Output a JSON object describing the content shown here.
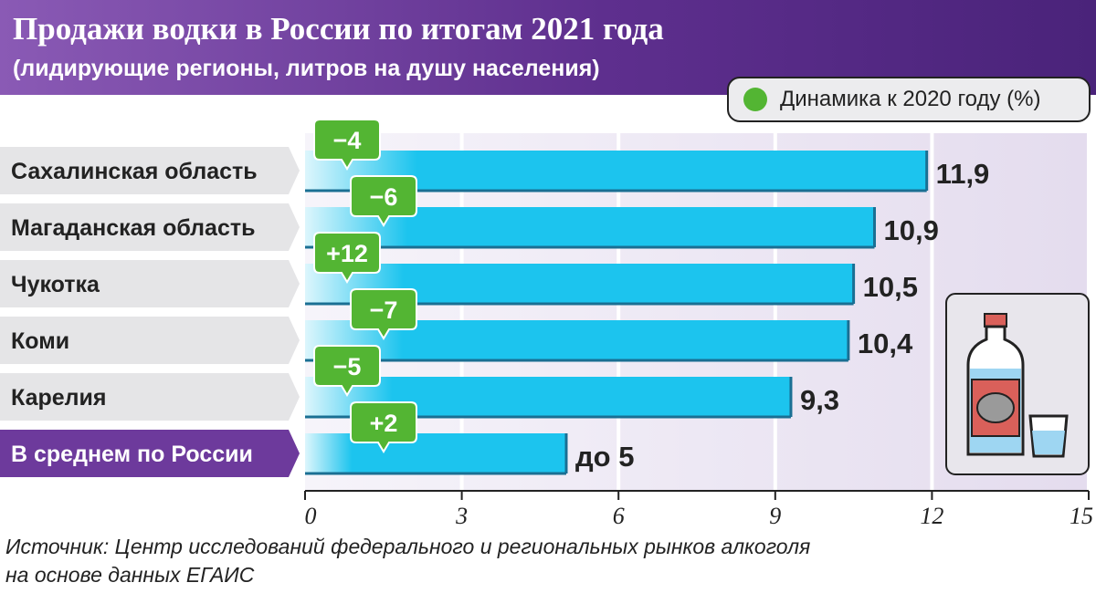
{
  "header": {
    "title": "Продажи водки в России по итогам 2021 года",
    "subtitle": "(лидирующие регионы, литров на душу населения)"
  },
  "legend": {
    "label": "Динамика к 2020 году (%)",
    "color": "#53b533"
  },
  "chart_data": {
    "type": "bar",
    "orientation": "horizontal",
    "categories": [
      "Сахалинская область",
      "Магаданская область",
      "Чукотка",
      "Коми",
      "Карелия",
      "В среднем по России"
    ],
    "values": [
      11.9,
      10.9,
      10.5,
      10.4,
      9.3,
      5
    ],
    "value_labels": [
      "11,9",
      "10,9",
      "10,5",
      "10,4",
      "9,3",
      "до 5"
    ],
    "changes": [
      "−4",
      "−6",
      "+12",
      "−7",
      "−5",
      "+2"
    ],
    "xlim": [
      0,
      15
    ],
    "xticks": [
      0,
      3,
      6,
      9,
      12,
      15
    ],
    "xtick_labels": [
      "0",
      "3",
      "6",
      "9",
      "12",
      "15"
    ],
    "highlighted_category": "В среднем по России",
    "grid": true,
    "colors": {
      "bar": "#1cc4ee",
      "badge": "#53b533",
      "highlight": "#6d3a9c",
      "label_bg": "#e5e5e7"
    }
  },
  "source": {
    "line1": "Источник: Центр исследований федерального и региональных рынков алкоголя",
    "line2": "на основе данных ЕГАИС"
  }
}
